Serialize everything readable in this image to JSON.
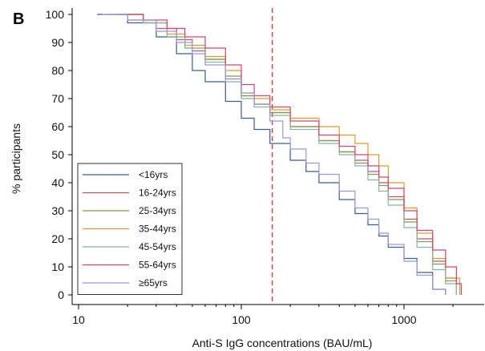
{
  "panel_label": "B",
  "chart_data": {
    "type": "line",
    "title": "",
    "xlabel": "Anti-S IgG concentrations (BAU/mL)",
    "ylabel": "% participants",
    "xscale": "log",
    "xlim": [
      10,
      2500
    ],
    "ylim": [
      0,
      100
    ],
    "xticks": [
      10,
      100,
      1000
    ],
    "xtick_labels": [
      "10",
      "100",
      "1000"
    ],
    "yticks": [
      0,
      10,
      20,
      30,
      40,
      50,
      60,
      70,
      80,
      90,
      100
    ],
    "ytick_labels": [
      "0",
      "10",
      "20",
      "30",
      "40",
      "50",
      "60",
      "70",
      "80",
      "90",
      "100"
    ],
    "reference_line": {
      "x": 155,
      "style": "dashed",
      "color": "#e0322c"
    },
    "grid": false,
    "legend_position": "bottom-left",
    "series": [
      {
        "name": "<16yrs",
        "color": "#3a5f88",
        "x": [
          13,
          20,
          30,
          40,
          50,
          60,
          80,
          100,
          120,
          150,
          200,
          250,
          300,
          400,
          500,
          600,
          700,
          800,
          1000,
          1200,
          1500,
          1800
        ],
        "y": [
          100,
          97,
          92,
          86,
          80,
          76,
          69,
          63,
          59,
          54,
          48,
          44,
          40,
          34,
          29,
          25,
          21,
          17,
          13,
          8,
          2,
          0
        ]
      },
      {
        "name": "16-24yrs",
        "color": "#b5586a",
        "x": [
          15,
          20,
          30,
          40,
          50,
          60,
          80,
          100,
          120,
          150,
          200,
          300,
          400,
          500,
          600,
          700,
          800,
          1000,
          1200,
          1500,
          1800,
          2100
        ],
        "y": [
          100,
          98,
          95,
          91,
          87,
          84,
          77,
          71,
          68,
          65,
          60,
          55,
          51,
          48,
          44,
          40,
          35,
          27,
          20,
          12,
          6,
          0
        ]
      },
      {
        "name": "25-34yrs",
        "color": "#7e9a4e",
        "x": [
          18,
          25,
          35,
          45,
          60,
          80,
          100,
          120,
          150,
          200,
          300,
          400,
          500,
          600,
          700,
          800,
          1000,
          1200,
          1500,
          1800,
          2100
        ],
        "y": [
          100,
          97,
          92,
          88,
          84,
          78,
          71,
          68,
          65,
          60,
          55,
          51,
          47,
          43,
          39,
          34,
          26,
          19,
          11,
          5,
          0
        ]
      },
      {
        "name": "35-44yrs",
        "color": "#e09a2a",
        "x": [
          18,
          25,
          35,
          45,
          60,
          80,
          100,
          120,
          150,
          200,
          300,
          400,
          500,
          600,
          700,
          800,
          1000,
          1200,
          1500,
          1800,
          2200
        ],
        "y": [
          100,
          97,
          93,
          89,
          85,
          80,
          72,
          70,
          66,
          63,
          60,
          57,
          54,
          50,
          46,
          40,
          31,
          22,
          13,
          6,
          0
        ]
      },
      {
        "name": "45-54yrs",
        "color": "#86b3a4",
        "x": [
          17,
          25,
          35,
          45,
          60,
          80,
          100,
          120,
          150,
          200,
          300,
          400,
          500,
          600,
          700,
          800,
          1000,
          1200,
          1500,
          1800,
          2100
        ],
        "y": [
          100,
          97,
          92,
          88,
          83,
          76,
          70,
          67,
          64,
          59,
          54,
          50,
          46,
          41,
          37,
          32,
          24,
          17,
          9,
          4,
          0
        ]
      },
      {
        "name": "55-64yrs",
        "color": "#d6466a",
        "x": [
          18,
          25,
          35,
          45,
          60,
          80,
          100,
          120,
          150,
          200,
          300,
          400,
          500,
          600,
          700,
          800,
          1000,
          1200,
          1500,
          1800,
          2100,
          2250
        ],
        "y": [
          100,
          98,
          95,
          92,
          88,
          82,
          75,
          71,
          67,
          62,
          57,
          53,
          50,
          46,
          42,
          38,
          30,
          23,
          16,
          10,
          4,
          0
        ]
      },
      {
        "name": "≥65yrs",
        "color": "#9a98d8",
        "x": [
          14,
          20,
          30,
          40,
          50,
          60,
          80,
          100,
          120,
          150,
          180,
          200,
          250,
          300,
          400,
          500,
          600,
          700,
          800,
          1000,
          1200,
          1500,
          1800
        ],
        "y": [
          100,
          98,
          94,
          90,
          86,
          82,
          77,
          72,
          68,
          62,
          56,
          52,
          47,
          43,
          37,
          31,
          27,
          22,
          18,
          12,
          7,
          2,
          0
        ]
      }
    ]
  }
}
